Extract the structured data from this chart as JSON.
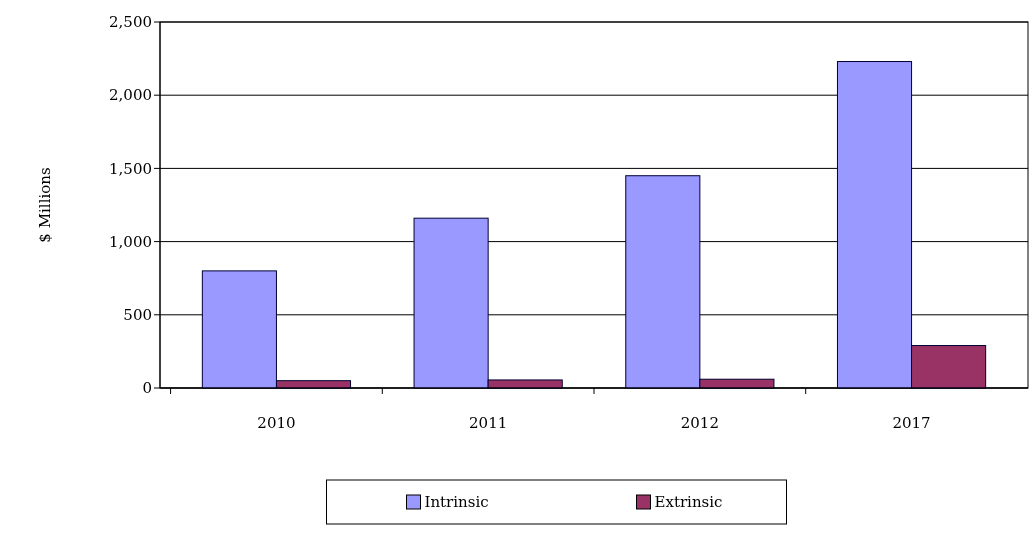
{
  "chart_data": {
    "type": "bar",
    "ylabel": "$ Millions",
    "categories": [
      "2010",
      "2011",
      "2012",
      "2017"
    ],
    "series": [
      {
        "name": "Intrinsic",
        "color": "#9999ff",
        "values": [
          800,
          1160,
          1450,
          2230
        ]
      },
      {
        "name": "Extrinsic",
        "color": "#993366",
        "values": [
          50,
          55,
          60,
          290
        ]
      }
    ],
    "ylim": [
      0,
      2500
    ],
    "yticks": [
      {
        "value": 0,
        "label": "0"
      },
      {
        "value": 500,
        "label": "500"
      },
      {
        "value": 1000,
        "label": "1,000"
      },
      {
        "value": 1500,
        "label": "1,500"
      },
      {
        "value": 2000,
        "label": "2,000"
      },
      {
        "value": 2500,
        "label": "2,500"
      }
    ],
    "grid": "y",
    "legend": "bottom"
  }
}
